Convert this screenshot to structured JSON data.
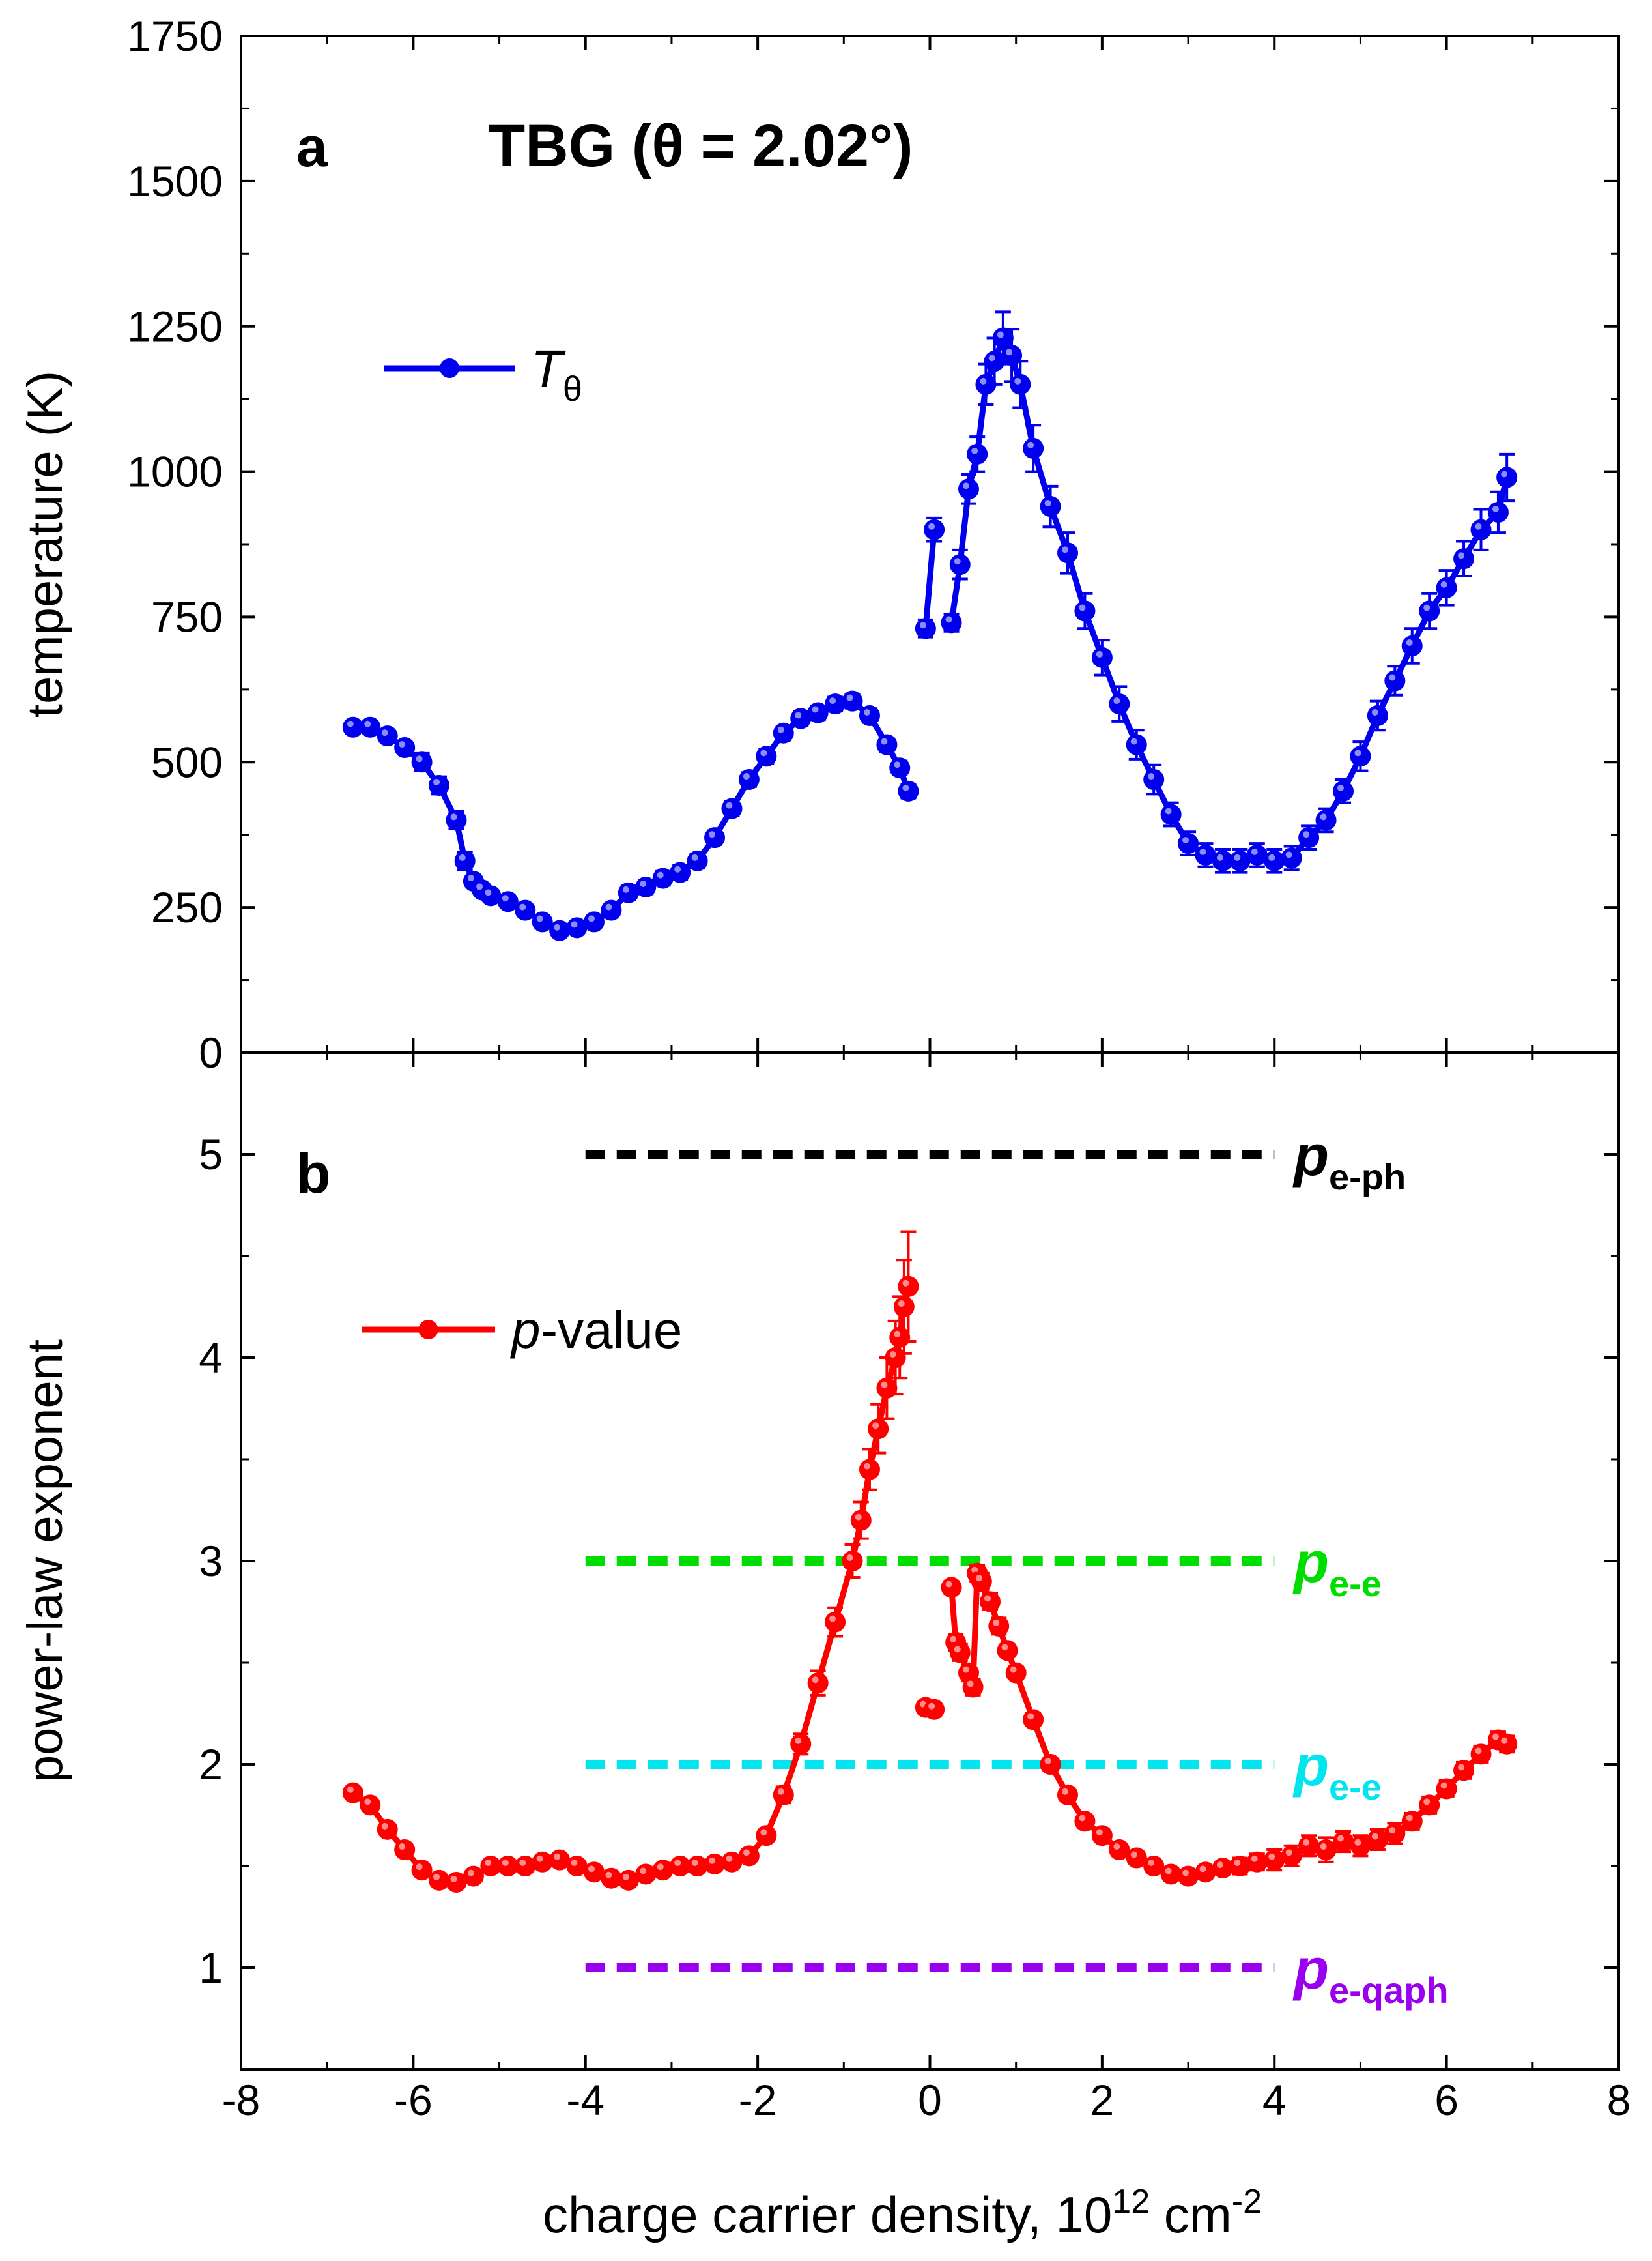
{
  "figure": {
    "xlabel_main": "charge carrier density, 10",
    "xlabel_sup1": "12",
    "xlabel_mid": " cm",
    "xlabel_sup2": "-2"
  },
  "chart_data": [
    {
      "panel": "a",
      "type": "line",
      "title": "TBG (θ = 2.02°)",
      "panel_label": "a",
      "xlabel": "charge carrier density, 10^12 cm^-2",
      "ylabel": "temperature (K)",
      "xlim": [
        -8,
        8
      ],
      "ylim": [
        0,
        1750
      ],
      "xticks": [
        -8,
        -6,
        -4,
        -2,
        0,
        2,
        4,
        6,
        8
      ],
      "yticks": [
        0,
        250,
        500,
        750,
        1000,
        1250,
        1500,
        1750
      ],
      "legend": {
        "label_main": "T",
        "label_sub": "θ",
        "position": "upper-left"
      },
      "series": [
        {
          "name": "Tθ",
          "color": "#0000ee",
          "segments": [
            {
              "x": [
                -6.7,
                -6.5,
                -6.3,
                -6.1,
                -5.9,
                -5.7,
                -5.5,
                -5.4,
                -5.3,
                -5.2,
                -5.1,
                -4.9,
                -4.7,
                -4.5,
                -4.3,
                -4.1,
                -3.9,
                -3.7,
                -3.5,
                -3.3,
                -3.1,
                -2.9,
                -2.7,
                -2.5,
                -2.3,
                -2.1,
                -1.9,
                -1.7,
                -1.5,
                -1.3,
                -1.1,
                -0.9,
                -0.7,
                -0.5,
                -0.35,
                -0.25
              ],
              "y": [
                560,
                560,
                545,
                525,
                500,
                460,
                400,
                330,
                295,
                280,
                270,
                260,
                245,
                225,
                210,
                215,
                225,
                245,
                275,
                285,
                300,
                310,
                330,
                370,
                420,
                470,
                510,
                550,
                575,
                585,
                600,
                605,
                580,
                530,
                490,
                450
              ],
              "err": [
                10,
                10,
                10,
                10,
                15,
                15,
                15,
                15,
                10,
                10,
                10,
                10,
                10,
                10,
                10,
                10,
                10,
                10,
                12,
                12,
                12,
                12,
                12,
                12,
                12,
                12,
                12,
                12,
                12,
                12,
                12,
                12,
                12,
                12,
                12,
                12
              ]
            },
            {
              "x": [
                -0.05,
                0.05
              ],
              "y": [
                730,
                900
              ],
              "err": [
                15,
                20
              ]
            },
            {
              "x": [
                0.25,
                0.35,
                0.45,
                0.55,
                0.65,
                0.75,
                0.85,
                0.95,
                1.05,
                1.2,
                1.4,
                1.6,
                1.8,
                2.0,
                2.2,
                2.4,
                2.6,
                2.8,
                3.0,
                3.2,
                3.4,
                3.6,
                3.8,
                4.0,
                4.2,
                4.4,
                4.6,
                4.8,
                5.0,
                5.2,
                5.4,
                5.6,
                5.8,
                6.0,
                6.2,
                6.4,
                6.6,
                6.7
              ],
              "y": [
                740,
                840,
                970,
                1030,
                1150,
                1190,
                1230,
                1200,
                1150,
                1040,
                940,
                860,
                760,
                680,
                600,
                530,
                470,
                410,
                360,
                340,
                330,
                330,
                340,
                330,
                335,
                370,
                400,
                450,
                510,
                580,
                640,
                700,
                760,
                800,
                850,
                900,
                930,
                990
              ],
              "err": [
                15,
                25,
                25,
                30,
                35,
                40,
                45,
                45,
                40,
                40,
                35,
                35,
                30,
                30,
                30,
                25,
                25,
                20,
                20,
                20,
                20,
                20,
                20,
                20,
                20,
                20,
                20,
                20,
                25,
                25,
                25,
                30,
                30,
                30,
                30,
                35,
                35,
                40
              ]
            }
          ]
        }
      ]
    },
    {
      "panel": "b",
      "type": "line",
      "panel_label": "b",
      "xlabel": "charge carrier density, 10^12 cm^-2",
      "ylabel": "power-law exponent",
      "xlim": [
        -8,
        8
      ],
      "ylim": [
        0.5,
        5.5
      ],
      "xticks": [
        -8,
        -6,
        -4,
        -2,
        0,
        2,
        4,
        6,
        8
      ],
      "yticks": [
        1,
        2,
        3,
        4,
        5
      ],
      "legend": {
        "label_italic": "p",
        "label_rest": "-value",
        "position": "upper-left"
      },
      "series": [
        {
          "name": "p-value",
          "color": "#ff0000",
          "segments": [
            {
              "x": [
                -6.7,
                -6.5,
                -6.3,
                -6.1,
                -5.9,
                -5.7,
                -5.5,
                -5.3,
                -5.1,
                -4.9,
                -4.7,
                -4.5,
                -4.3,
                -4.1,
                -3.9,
                -3.7,
                -3.5,
                -3.3,
                -3.1,
                -2.9,
                -2.7,
                -2.5,
                -2.3,
                -2.1,
                -1.9,
                -1.7,
                -1.5,
                -1.3,
                -1.1,
                -0.9,
                -0.8,
                -0.7,
                -0.6,
                -0.5,
                -0.4,
                -0.35,
                -0.3,
                -0.25
              ],
              "y": [
                1.86,
                1.8,
                1.68,
                1.58,
                1.48,
                1.43,
                1.42,
                1.45,
                1.5,
                1.5,
                1.5,
                1.52,
                1.53,
                1.5,
                1.47,
                1.44,
                1.43,
                1.46,
                1.48,
                1.5,
                1.5,
                1.51,
                1.52,
                1.55,
                1.65,
                1.85,
                2.1,
                2.4,
                2.7,
                3.0,
                3.2,
                3.45,
                3.65,
                3.85,
                4.0,
                4.1,
                4.25,
                4.35
              ],
              "err": [
                0.02,
                0.02,
                0.02,
                0.02,
                0.02,
                0.02,
                0.02,
                0.02,
                0.02,
                0.02,
                0.02,
                0.02,
                0.02,
                0.02,
                0.02,
                0.02,
                0.02,
                0.02,
                0.02,
                0.02,
                0.02,
                0.02,
                0.02,
                0.03,
                0.03,
                0.04,
                0.05,
                0.06,
                0.07,
                0.08,
                0.09,
                0.1,
                0.12,
                0.15,
                0.18,
                0.2,
                0.23,
                0.27
              ]
            },
            {
              "x": [
                -0.05,
                0.05
              ],
              "y": [
                2.28,
                2.27
              ],
              "err": [
                0.03,
                0.03
              ]
            },
            {
              "x": [
                0.25,
                0.3,
                0.35,
                0.45,
                0.5,
                0.55,
                0.6,
                0.7,
                0.8,
                0.9,
                1.0,
                1.2,
                1.4,
                1.6,
                1.8,
                2.0,
                2.2,
                2.4,
                2.6,
                2.8,
                3.0,
                3.2,
                3.4,
                3.6,
                3.8,
                4.0,
                4.2,
                4.4,
                4.6,
                4.8,
                5.0,
                5.2,
                5.4,
                5.6,
                5.8,
                6.0,
                6.2,
                6.4,
                6.6,
                6.7
              ],
              "y": [
                2.87,
                2.6,
                2.55,
                2.45,
                2.38,
                2.94,
                2.9,
                2.8,
                2.68,
                2.56,
                2.45,
                2.22,
                2.0,
                1.85,
                1.72,
                1.65,
                1.58,
                1.54,
                1.5,
                1.46,
                1.45,
                1.47,
                1.49,
                1.5,
                1.52,
                1.53,
                1.55,
                1.6,
                1.58,
                1.62,
                1.6,
                1.63,
                1.66,
                1.72,
                1.8,
                1.88,
                1.97,
                2.05,
                2.12,
                2.1
              ],
              "err": [
                0.03,
                0.04,
                0.04,
                0.04,
                0.04,
                0.04,
                0.04,
                0.04,
                0.04,
                0.03,
                0.03,
                0.03,
                0.03,
                0.03,
                0.03,
                0.03,
                0.03,
                0.03,
                0.03,
                0.03,
                0.03,
                0.03,
                0.03,
                0.04,
                0.04,
                0.05,
                0.05,
                0.05,
                0.06,
                0.05,
                0.05,
                0.05,
                0.05,
                0.04,
                0.04,
                0.04,
                0.04,
                0.04,
                0.04,
                0.04
              ]
            }
          ]
        }
      ],
      "reference_lines": [
        {
          "y": 5,
          "x_range": [
            -4,
            4
          ],
          "color": "#000000",
          "label_main": "p",
          "label_sub": "e-ph"
        },
        {
          "y": 3,
          "x_range": [
            -4,
            4
          ],
          "color": "#00dd00",
          "label_main": "p",
          "label_sub": "e-e"
        },
        {
          "y": 2,
          "x_range": [
            -4,
            4
          ],
          "color": "#00e5ee",
          "label_main": "p",
          "label_sub": "e-e"
        },
        {
          "y": 1,
          "x_range": [
            -4,
            4
          ],
          "color": "#9900ee",
          "label_main": "p",
          "label_sub": "e-qaph"
        }
      ]
    }
  ]
}
